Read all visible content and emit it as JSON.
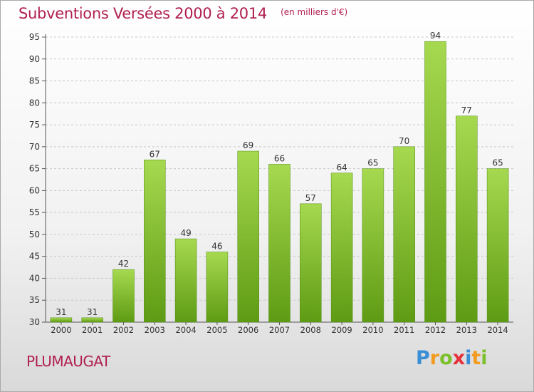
{
  "title": "Subventions Versées 2000 à 2014",
  "subtitle": "(en milliers d'€)",
  "town": "PLUMAUGAT",
  "logo": {
    "letters": [
      "P",
      "r",
      "o",
      "x",
      "i",
      "t",
      "i"
    ],
    "colors": [
      "#3a8ed6",
      "#f29b1d",
      "#7bbf2a",
      "#e5303a",
      "#3a8ed6",
      "#f29b1d",
      "#7bbf2a"
    ]
  },
  "chart_data": {
    "type": "bar",
    "categories": [
      "2000",
      "2001",
      "2002",
      "2003",
      "2004",
      "2005",
      "2006",
      "2007",
      "2008",
      "2009",
      "2010",
      "2011",
      "2012",
      "2013",
      "2014"
    ],
    "values": [
      31,
      31,
      42,
      67,
      49,
      46,
      69,
      66,
      57,
      64,
      65,
      70,
      94,
      77,
      65
    ],
    "ylim": [
      30,
      95
    ],
    "yticks": [
      30,
      35,
      40,
      45,
      50,
      55,
      60,
      65,
      70,
      75,
      80,
      85,
      90,
      95
    ],
    "grid": "horizontal dashed",
    "bar_color_top": "#a6d94f",
    "bar_color_bottom": "#5e9b14",
    "data_labels": true
  }
}
